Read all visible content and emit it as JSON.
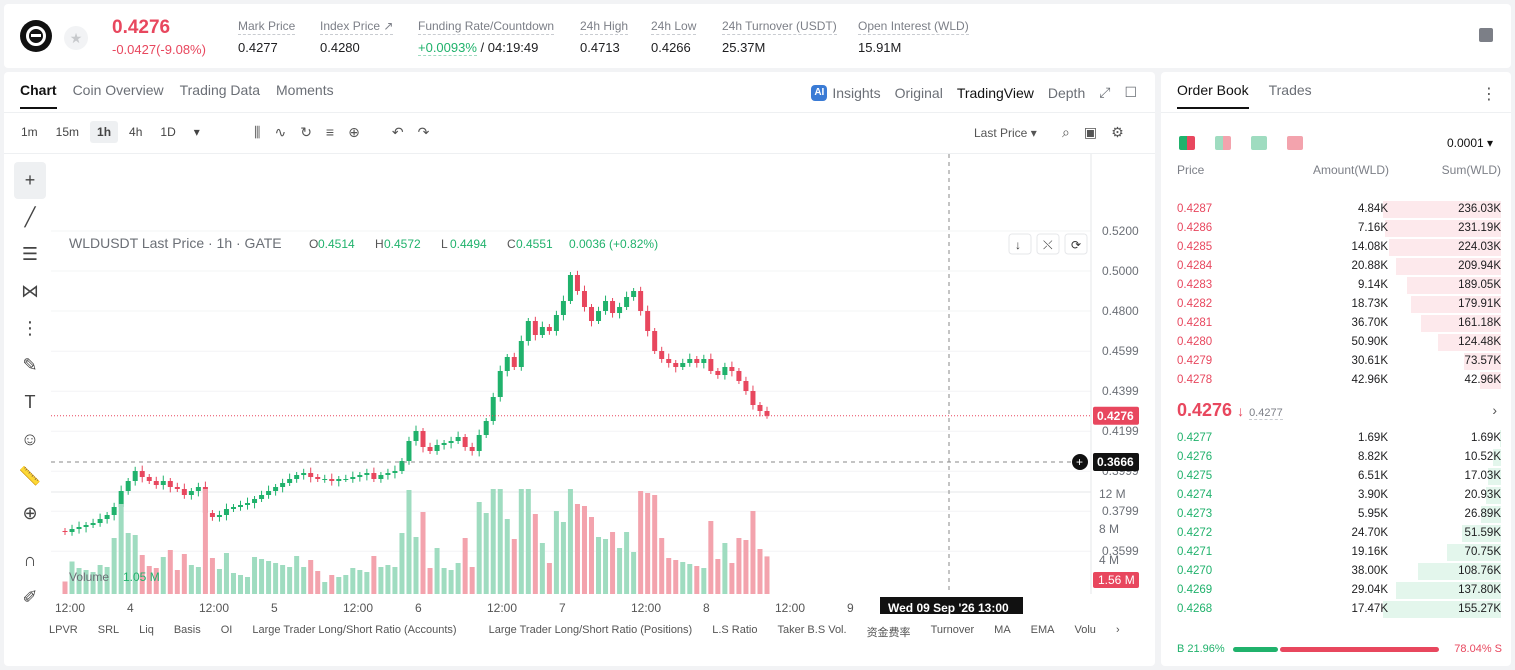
{
  "header": {
    "price": "0.4276",
    "change": "-0.0427(-9.08%)",
    "stats": [
      {
        "label": "Mark Price",
        "value": "0.4277"
      },
      {
        "label": "Index Price ↗",
        "value": "0.4280"
      },
      {
        "label": "Funding Rate/Countdown",
        "value": "+0.0093%",
        "value2": "/ 04:19:49"
      },
      {
        "label": "24h High",
        "value": "0.4713"
      },
      {
        "label": "24h Low",
        "value": "0.4266"
      },
      {
        "label": "24h Turnover (USDT)",
        "value": "25.37M"
      },
      {
        "label": "Open Interest (WLD)",
        "value": "15.91M"
      }
    ]
  },
  "chart_tabs": [
    "Chart",
    "Coin Overview",
    "Trading Data",
    "Moments"
  ],
  "chart_right_tabs": {
    "insights": "Insights",
    "original": "Original",
    "tradingview": "TradingView",
    "depth": "Depth"
  },
  "timeframes": [
    "1m",
    "15m",
    "1h",
    "4h",
    "1D"
  ],
  "selected_timeframe": "1h",
  "last_price_label": "Last Price",
  "legend": {
    "symbol": "WLDUSDT Last Price · 1h · GATE",
    "o_label": "O",
    "o": "0.4514",
    "h_label": "H",
    "h": "0.4572",
    "l_label": "L",
    "l": "0.4494",
    "c_label": "C",
    "c": "0.4551",
    "chg": "0.0036 (+0.82%)"
  },
  "volume_legend": {
    "label": "Volume",
    "value": "1.05 M"
  },
  "tv_logo": "TV",
  "price_tag": "0.4276",
  "crosshair_tag": "0.3666",
  "volume_tag": "1.56 M",
  "time_tooltip": "Wed 09 Sep '26   13:00",
  "indicators": [
    "LPVR",
    "SRL",
    "Liq",
    "Basis",
    "OI",
    "Large Trader Long/Short Ratio (Accounts)",
    "Large Trader Long/Short Ratio (Positions)",
    "L.S Ratio",
    "Taker B.S Vol.",
    "资金费率",
    "Turnover",
    "MA",
    "EMA",
    "Volu"
  ],
  "chart_data": {
    "type": "candlestick",
    "title": "WLDUSDT Last Price · 1h · GATE",
    "price_ticks": [
      "0.5200",
      "0.5000",
      "0.4800",
      "0.4599",
      "0.4399",
      "0.4199",
      "0.3999",
      "0.3799",
      "0.3599"
    ],
    "volume_ticks": [
      "12 M",
      "8 M",
      "4 M"
    ],
    "x_ticks": [
      "12:00",
      "4",
      "12:00",
      "5",
      "12:00",
      "6",
      "12:00",
      "7",
      "12:00",
      "8",
      "12:00",
      "9",
      "12:"
    ],
    "approx_closes": [
      0.3695,
      0.371,
      0.372,
      0.373,
      0.374,
      0.376,
      0.378,
      0.382,
      0.39,
      0.395,
      0.4,
      0.397,
      0.395,
      0.393,
      0.395,
      0.392,
      0.391,
      0.388,
      0.39,
      0.392,
      0.379,
      0.377,
      0.378,
      0.381,
      0.382,
      0.383,
      0.384,
      0.386,
      0.388,
      0.39,
      0.392,
      0.394,
      0.396,
      0.398,
      0.399,
      0.397,
      0.396,
      0.396,
      0.395,
      0.396,
      0.396,
      0.397,
      0.398,
      0.399,
      0.396,
      0.398,
      0.399,
      0.4,
      0.405,
      0.415,
      0.42,
      0.412,
      0.41,
      0.413,
      0.414,
      0.415,
      0.417,
      0.412,
      0.41,
      0.418,
      0.425,
      0.437,
      0.45,
      0.457,
      0.452,
      0.465,
      0.475,
      0.468,
      0.472,
      0.47,
      0.478,
      0.485,
      0.498,
      0.49,
      0.482,
      0.475,
      0.48,
      0.485,
      0.479,
      0.482,
      0.487,
      0.49,
      0.48,
      0.47,
      0.46,
      0.456,
      0.454,
      0.452,
      0.454,
      0.456,
      0.454,
      0.456,
      0.45,
      0.448,
      0.452,
      0.45,
      0.445,
      0.44,
      0.433,
      0.43,
      0.4276
    ],
    "last_price": 0.4276,
    "volume_units": "M"
  },
  "order_book": {
    "tabs": [
      "Order Book",
      "Trades"
    ],
    "precision": "0.0001",
    "headers": {
      "price": "Price",
      "amount": "Amount(WLD)",
      "sum": "Sum(WLD)"
    },
    "asks": [
      {
        "price": "0.4287",
        "amount": "4.84K",
        "sum": "236.03K",
        "frac": 1.0
      },
      {
        "price": "0.4286",
        "amount": "7.16K",
        "sum": "231.19K",
        "frac": 0.98
      },
      {
        "price": "0.4285",
        "amount": "14.08K",
        "sum": "224.03K",
        "frac": 0.95
      },
      {
        "price": "0.4284",
        "amount": "20.88K",
        "sum": "209.94K",
        "frac": 0.89
      },
      {
        "price": "0.4283",
        "amount": "9.14K",
        "sum": "189.05K",
        "frac": 0.8
      },
      {
        "price": "0.4282",
        "amount": "18.73K",
        "sum": "179.91K",
        "frac": 0.76
      },
      {
        "price": "0.4281",
        "amount": "36.70K",
        "sum": "161.18K",
        "frac": 0.68
      },
      {
        "price": "0.4280",
        "amount": "50.90K",
        "sum": "124.48K",
        "frac": 0.53
      },
      {
        "price": "0.4279",
        "amount": "30.61K",
        "sum": "73.57K",
        "frac": 0.31
      },
      {
        "price": "0.4278",
        "amount": "42.96K",
        "sum": "42.96K",
        "frac": 0.18
      }
    ],
    "mid_price": "0.4276",
    "mark_price": "0.4277",
    "bids": [
      {
        "price": "0.4277",
        "amount": "1.69K",
        "sum": "1.69K",
        "frac": 0.01
      },
      {
        "price": "0.4276",
        "amount": "8.82K",
        "sum": "10.52K",
        "frac": 0.07
      },
      {
        "price": "0.4275",
        "amount": "6.51K",
        "sum": "17.03K",
        "frac": 0.11
      },
      {
        "price": "0.4274",
        "amount": "3.90K",
        "sum": "20.93K",
        "frac": 0.13
      },
      {
        "price": "0.4273",
        "amount": "5.95K",
        "sum": "26.89K",
        "frac": 0.17
      },
      {
        "price": "0.4272",
        "amount": "24.70K",
        "sum": "51.59K",
        "frac": 0.33
      },
      {
        "price": "0.4271",
        "amount": "19.16K",
        "sum": "70.75K",
        "frac": 0.46
      },
      {
        "price": "0.4270",
        "amount": "38.00K",
        "sum": "108.76K",
        "frac": 0.7
      },
      {
        "price": "0.4269",
        "amount": "29.04K",
        "sum": "137.80K",
        "frac": 0.89
      },
      {
        "price": "0.4268",
        "amount": "17.47K",
        "sum": "155.27K",
        "frac": 1.0
      }
    ],
    "buy_ratio": "B 21.96%",
    "sell_ratio": "78.04% S",
    "buy_frac": 0.2196
  },
  "colors": {
    "up": "#20b26c",
    "down": "#e8475e",
    "accent": "#111111"
  }
}
